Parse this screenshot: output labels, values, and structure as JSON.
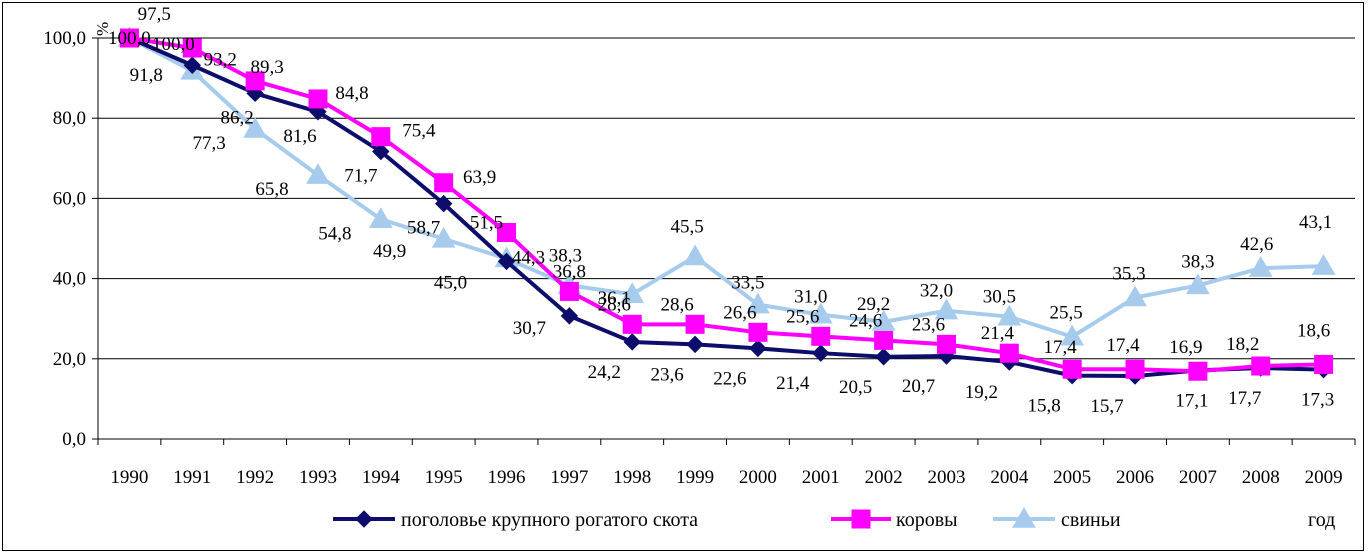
{
  "chart_data": {
    "type": "line",
    "y_unit": "%",
    "x_unit": "год",
    "ylim": [
      0,
      100
    ],
    "yticks": [
      "0,0",
      "20,0",
      "40,0",
      "60,0",
      "80,0",
      "100,0"
    ],
    "grid": "horizontal",
    "legend_position": "bottom",
    "categories": [
      "1990",
      "1991",
      "1992",
      "1993",
      "1994",
      "1995",
      "1996",
      "1997",
      "1998",
      "1999",
      "2000",
      "2001",
      "2002",
      "2003",
      "2004",
      "2005",
      "2006",
      "2007",
      "2008",
      "2009"
    ],
    "series": [
      {
        "name": "поголовье крупного рогатого скота",
        "color": "#0d0d6b",
        "marker": "diamond",
        "values": [
          100.0,
          93.2,
          86.2,
          81.6,
          71.7,
          58.7,
          44.3,
          30.7,
          24.2,
          23.6,
          22.6,
          21.4,
          20.5,
          20.7,
          19.2,
          15.8,
          15.7,
          17.1,
          17.7,
          17.3
        ],
        "labels": [
          "100,0",
          "93,2",
          "86,2",
          "81,6",
          "71,7",
          "58,7",
          "44,3",
          "30,7",
          "24,2",
          "23,6",
          "22,6",
          "21,4",
          "20,5",
          "20,7",
          "19,2",
          "15,8",
          "15,7",
          "17,1",
          "17,7",
          "17,3"
        ]
      },
      {
        "name": "коровы",
        "color": "#ff00ff",
        "marker": "square",
        "values": [
          100.0,
          97.5,
          89.3,
          84.8,
          75.4,
          63.9,
          51.5,
          36.8,
          28.6,
          28.6,
          26.6,
          25.6,
          24.6,
          23.6,
          21.4,
          17.4,
          17.4,
          16.9,
          18.2,
          18.6
        ],
        "labels": [
          "",
          "97,5",
          "89,3",
          "84,8",
          "75,4",
          "63,9",
          "51,5",
          "36,8",
          "28,6",
          "28,6",
          "26,6",
          "25,6",
          "24,6",
          "23,6",
          "21,4",
          "17,4",
          "17,4",
          "16,9",
          "18,2",
          "18,6"
        ]
      },
      {
        "name": "свиньи",
        "color": "#a6cbec",
        "marker": "triangle",
        "values": [
          100.0,
          91.8,
          77.3,
          65.8,
          54.8,
          49.9,
          45.0,
          38.3,
          36.1,
          45.5,
          33.5,
          31.0,
          29.2,
          32.0,
          30.5,
          25.5,
          35.3,
          38.3,
          42.6,
          43.1
        ],
        "labels": [
          "",
          "91,8",
          "77,3",
          "65,8",
          "54,8",
          "49,9",
          "45,0",
          "38,3",
          "36,1",
          "45,5",
          "33,5",
          "31,0",
          "29,2",
          "32,0",
          "30,5",
          "25,5",
          "35,3",
          "38,3",
          "42,6",
          "43,1"
        ]
      }
    ]
  }
}
